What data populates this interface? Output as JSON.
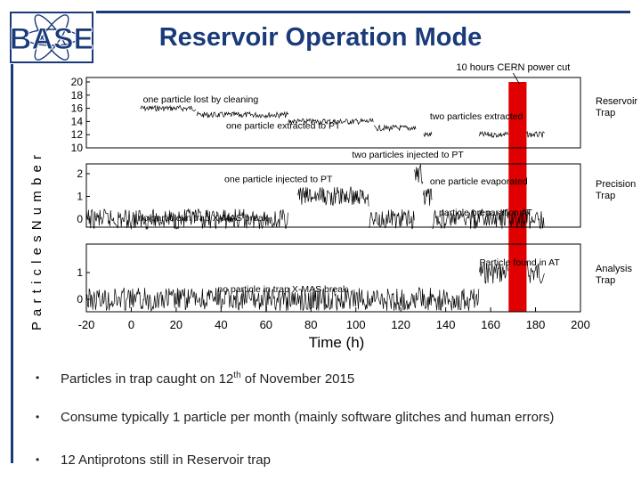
{
  "logo": {
    "text": "BASE",
    "icon": "base-logo-icon",
    "color": "#1a3a7a"
  },
  "title": "Reservoir Operation Mode",
  "bullets": [
    {
      "pre": "Particles in trap caught on 12",
      "sup": "th",
      "post": " of November 2015"
    },
    {
      "pre": "Consume typically 1 particle per month (mainly software glitches and human errors)",
      "sup": "",
      "post": ""
    },
    {
      "pre": "12 Antiprotons still in Reservoir trap",
      "sup": "",
      "post": ""
    }
  ],
  "chart_data": {
    "type": "line",
    "xlabel": "Time (h)",
    "xlim": [
      -20,
      200
    ],
    "xticks": [
      "-20",
      "0",
      "20",
      "40",
      "60",
      "80",
      "100",
      "120",
      "140",
      "160",
      "180",
      "200"
    ],
    "ylabel": "P a r t i c l e s N u m b e r",
    "power_cut": {
      "label": "10 hours CERN power cut",
      "x_range": [
        168,
        176
      ],
      "color": "#e00000"
    },
    "panels": [
      {
        "name": "Reservoir Trap",
        "ylim": [
          10,
          20
        ],
        "yticks": [
          "20",
          "18",
          "16",
          "14",
          "12",
          "10"
        ],
        "segments": [
          {
            "x": [
              4,
              29
            ],
            "y": 16
          },
          {
            "x": [
              29,
              70
            ],
            "y": 15
          },
          {
            "x": [
              70,
              108
            ],
            "y": 14
          },
          {
            "x": [
              108,
              127
            ],
            "y": 13
          },
          {
            "x": [
              130,
              134
            ],
            "y": 12
          },
          {
            "x": [
              155,
              168
            ],
            "y": 12
          },
          {
            "x": [
              176,
              184
            ],
            "y": 12
          }
        ],
        "annotations": [
          {
            "text": "one particle lost by cleaning",
            "x": 29,
            "y": 15
          },
          {
            "text": "two particles extracted",
            "x": 127,
            "y": 13
          },
          {
            "text": "one particle extracted to PT",
            "x": 70,
            "y": 14
          }
        ]
      },
      {
        "name": "Precision Trap",
        "ylim": [
          0,
          2
        ],
        "yticks": [
          "2",
          "1",
          "0"
        ],
        "segments": [
          {
            "x": [
              -20,
              70
            ],
            "y": 0
          },
          {
            "x": [
              74,
              106
            ],
            "y": 1
          },
          {
            "x": [
              106,
              126
            ],
            "y": 0
          },
          {
            "x": [
              126,
              130
            ],
            "y": 2
          },
          {
            "x": [
              130,
              134
            ],
            "y": 1
          },
          {
            "x": [
              134,
              184
            ],
            "y": 0
          }
        ],
        "annotations": [
          {
            "text": "one particle injected to PT",
            "x": 70,
            "y": 1
          },
          {
            "text": "two particles injected to PT",
            "x": 126,
            "y": 2
          },
          {
            "text": "one particle evaporated",
            "x": 131,
            "y": 1.6
          },
          {
            "text": "no particle in trap X-MAS break",
            "x": 30,
            "y": 0
          },
          {
            "text": "particle preparation AT",
            "x": 135,
            "y": 0
          }
        ]
      },
      {
        "name": "Analysis Trap",
        "ylim": [
          0,
          1
        ],
        "yticks": [
          "1",
          "0"
        ],
        "segments": [
          {
            "x": [
              -20,
              155
            ],
            "y": 0
          },
          {
            "x": [
              155,
              168
            ],
            "y": 1
          },
          {
            "x": [
              176,
              184
            ],
            "y": 1
          }
        ],
        "annotations": [
          {
            "text": "Particle found in AT",
            "x": 155,
            "y": 1
          },
          {
            "text": "no particle in trap X-MAS break",
            "x": 40,
            "y": 0
          }
        ]
      }
    ]
  }
}
